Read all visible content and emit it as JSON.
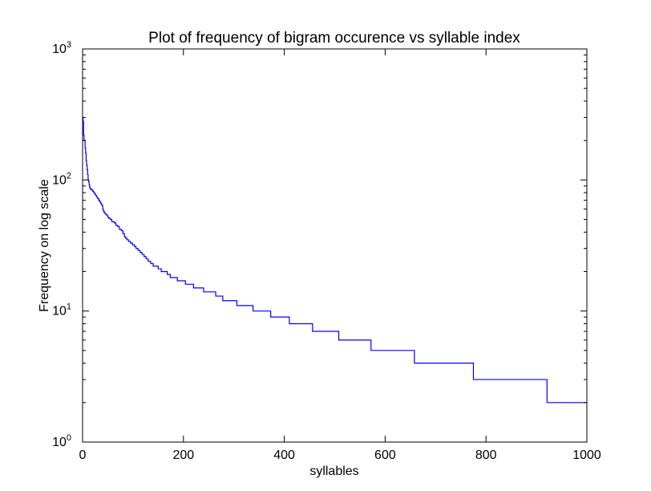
{
  "chart_data": {
    "type": "line",
    "title": "Plot of frequency of bigram occurence vs syllable index",
    "xlabel": "syllables",
    "ylabel": "Frequency on log scale",
    "xlim": [
      0,
      1000
    ],
    "ylim": [
      1,
      1000
    ],
    "yscale": "log",
    "grid": false,
    "legend": "none",
    "line_color": "#0000ff",
    "x_ticks": [
      0,
      200,
      400,
      600,
      800,
      1000
    ],
    "y_ticks": [
      {
        "value": 1,
        "base": "10",
        "exp": "0"
      },
      {
        "value": 10,
        "base": "10",
        "exp": "1"
      },
      {
        "value": 100,
        "base": "10",
        "exp": "2"
      },
      {
        "value": 1000,
        "base": "10",
        "exp": "3"
      }
    ],
    "series": [
      {
        "x": [
          0,
          1,
          2,
          3,
          4,
          5,
          6,
          7,
          8,
          9,
          10,
          11,
          12,
          13,
          14,
          15,
          16,
          18,
          20,
          22,
          24,
          26,
          28,
          30,
          32,
          34,
          36,
          38,
          40,
          41,
          43,
          45,
          47,
          50,
          52,
          55,
          58,
          60,
          63,
          66,
          70,
          73,
          77,
          80,
          83,
          85,
          88,
          91,
          95,
          99,
          103,
          106,
          110,
          114,
          118,
          122,
          126,
          130,
          135,
          140,
          145,
          150,
          156,
          162,
          168,
          174,
          181,
          188,
          196,
          204,
          212,
          220,
          230,
          240,
          252,
          264,
          278,
          292,
          306,
          322,
          338,
          356,
          373,
          390,
          410,
          432,
          456,
          482,
          508,
          536,
          572,
          609,
          658,
          709,
          775,
          843,
          921,
          1000
        ],
        "y": [
          300,
          280,
          220,
          200,
          200,
          175,
          160,
          140,
          130,
          120,
          110,
          100,
          97,
          92,
          88,
          86,
          85,
          84,
          82,
          80,
          78,
          76,
          74,
          72,
          70,
          68,
          66,
          64,
          60,
          58,
          56,
          55,
          54,
          52,
          51,
          50,
          48,
          48,
          47,
          45,
          44,
          42,
          41,
          39,
          37,
          36,
          35,
          34,
          33,
          32,
          31,
          30,
          29,
          28,
          27,
          26,
          25,
          24,
          23,
          22,
          22,
          21,
          20,
          20,
          19,
          18,
          18,
          17,
          17,
          16,
          16,
          15,
          15,
          14,
          14,
          13,
          12,
          12,
          11,
          11,
          10,
          10,
          9,
          9,
          8,
          8,
          7,
          7,
          6,
          6,
          5,
          5,
          4,
          4,
          3,
          3,
          2,
          2
        ]
      }
    ]
  }
}
